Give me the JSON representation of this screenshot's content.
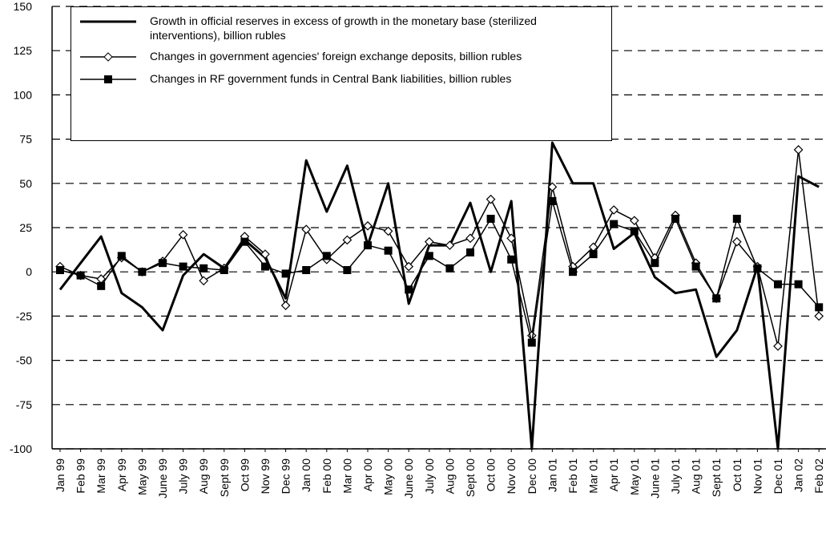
{
  "chart_data": {
    "type": "line",
    "categories": [
      "Jan 99",
      "Feb 99",
      "Mar 99",
      "Apr 99",
      "May 99",
      "June 99",
      "July 99",
      "Aug 99",
      "Sept 99",
      "Oct 99",
      "Nov 99",
      "Dec 99",
      "Jan 00",
      "Feb 00",
      "Mar 00",
      "Apr 00",
      "May 00",
      "June 00",
      "July 00",
      "Aug 00",
      "Sept 00",
      "Oct 00",
      "Nov 00",
      "Dec 00",
      "Jan 01",
      "Feb 01",
      "Mar 01",
      "Apr 01",
      "May 01",
      "June 01",
      "July 01",
      "Aug 01",
      "Sept 01",
      "Oct 01",
      "Nov 01",
      "Dec 01",
      "Jan 02",
      "Feb 02"
    ],
    "series": [
      {
        "name": "Growth in official reserves in excess of growth in the monetary base (sterilized interventions), billion rubles",
        "color": "#000000",
        "marker": "none",
        "values": [
          -10,
          5,
          20,
          -12,
          -20,
          -33,
          -2,
          10,
          2,
          18,
          8,
          -15,
          63,
          34,
          60,
          15,
          50,
          -18,
          15,
          15,
          39,
          0,
          40,
          -100,
          73,
          50,
          50,
          13,
          22,
          -3,
          -12,
          -10,
          -48,
          -33,
          3,
          -100,
          54,
          48
        ]
      },
      {
        "name": "Changes in government agencies' foreign exchange deposits, billion rubles",
        "color": "#000000",
        "marker": "diamond",
        "values": [
          3,
          -2,
          -4,
          8,
          0,
          6,
          21,
          -5,
          2,
          20,
          10,
          -19,
          24,
          7,
          18,
          26,
          23,
          3,
          17,
          15,
          19,
          41,
          19,
          -36,
          48,
          3,
          14,
          35,
          29,
          8,
          32,
          5,
          -15,
          17,
          3,
          -42,
          69,
          -25
        ]
      },
      {
        "name": "Changes in RF government funds in Central Bank liabilities, billion rubles",
        "color": "#000000",
        "marker": "square",
        "values": [
          1,
          -2,
          -8,
          9,
          0,
          5,
          3,
          2,
          1,
          17,
          3,
          -1,
          1,
          9,
          1,
          15,
          12,
          -10,
          9,
          2,
          11,
          30,
          7,
          -40,
          40,
          0,
          10,
          27,
          23,
          5,
          30,
          3,
          -15,
          30,
          2,
          -7,
          -7,
          -20
        ]
      }
    ],
    "ylim": [
      -100,
      150
    ],
    "yticks": [
      -100,
      -75,
      -50,
      -25,
      0,
      25,
      50,
      75,
      100,
      125,
      150
    ],
    "grid": true
  }
}
